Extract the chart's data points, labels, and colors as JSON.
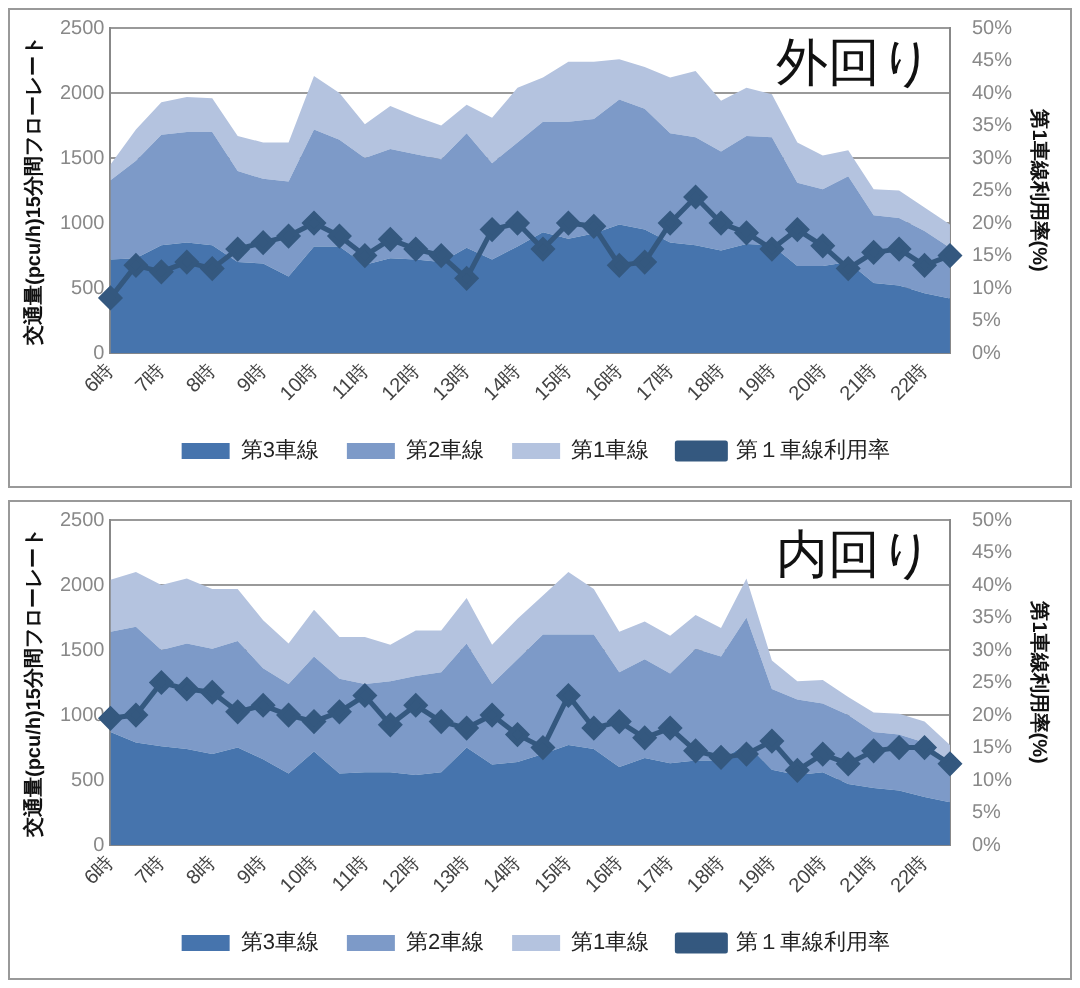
{
  "chart_data": [
    {
      "type": "area",
      "title": "外回り",
      "ylabel": "交通量(pcu/h)15分間フローレート",
      "y2label": "第1車線利用率(%)",
      "stacked": true,
      "grid": "y",
      "legend": "bottom",
      "categories": [
        "6時",
        null,
        "7時",
        null,
        "8時",
        null,
        "9時",
        null,
        "10時",
        null,
        "11時",
        null,
        "12時",
        null,
        "13時",
        null,
        "14時",
        null,
        "15時",
        null,
        "16時",
        null,
        "17時",
        null,
        "18時",
        null,
        "19時",
        null,
        "20時",
        null,
        "21時",
        null,
        "22時",
        null
      ],
      "ylim": [
        0,
        2500
      ],
      "yticks": [
        0,
        500,
        1000,
        1500,
        2000,
        2500
      ],
      "y2lim": [
        0,
        50
      ],
      "y2ticks": [
        {
          "value": 0,
          "label": "0%"
        },
        {
          "value": 5,
          "label": "5%"
        },
        {
          "value": 10,
          "label": "10%"
        },
        {
          "value": 15,
          "label": "15%"
        },
        {
          "value": 20,
          "label": "20%"
        },
        {
          "value": 25,
          "label": "25%"
        },
        {
          "value": 30,
          "label": "30%"
        },
        {
          "value": 35,
          "label": "35%"
        },
        {
          "value": 40,
          "label": "40%"
        },
        {
          "value": 45,
          "label": "45%"
        },
        {
          "value": 50,
          "label": "50%"
        }
      ],
      "series": [
        {
          "name": "第3車線",
          "color": "#4674ad",
          "values": [
            720,
            730,
            830,
            850,
            830,
            700,
            690,
            590,
            820,
            820,
            680,
            730,
            720,
            700,
            810,
            720,
            820,
            930,
            880,
            920,
            990,
            950,
            850,
            830,
            790,
            840,
            830,
            670,
            670,
            700,
            540,
            520,
            460,
            420
          ]
        },
        {
          "name": "第2車線",
          "color": "#7d9ac8",
          "values": [
            610,
            750,
            850,
            850,
            870,
            700,
            650,
            730,
            900,
            820,
            820,
            840,
            810,
            790,
            880,
            740,
            800,
            850,
            900,
            880,
            960,
            930,
            840,
            830,
            760,
            830,
            830,
            640,
            590,
            660,
            520,
            520,
            480,
            390
          ]
        },
        {
          "name": "第1車線",
          "color": "#b4c3df",
          "values": [
            120,
            240,
            250,
            270,
            260,
            270,
            280,
            300,
            410,
            360,
            260,
            330,
            290,
            260,
            220,
            350,
            420,
            340,
            460,
            440,
            310,
            320,
            430,
            510,
            390,
            370,
            330,
            310,
            260,
            200,
            200,
            210,
            180,
            180
          ]
        },
        {
          "name": "第１車線利用率",
          "type": "line",
          "axis": "y2",
          "marker": "diamond",
          "line_style": "solid",
          "color": "#34587f",
          "values": [
            8.5,
            13.5,
            12.5,
            14,
            13,
            16,
            17,
            18,
            20,
            18,
            15,
            17.5,
            16,
            15,
            11.5,
            19,
            20,
            16,
            20,
            19.5,
            13.5,
            14,
            20,
            24,
            20,
            18.5,
            16,
            19,
            16.5,
            13,
            15.5,
            16,
            13.5,
            15
          ]
        }
      ]
    },
    {
      "type": "area",
      "title": "内回り",
      "ylabel": "交通量(pcu/h)15分間フローレート",
      "y2label": "第1車線利用率(%)",
      "stacked": true,
      "grid": "y",
      "legend": "bottom",
      "categories": [
        "6時",
        null,
        "7時",
        null,
        "8時",
        null,
        "9時",
        null,
        "10時",
        null,
        "11時",
        null,
        "12時",
        null,
        "13時",
        null,
        "14時",
        null,
        "15時",
        null,
        "16時",
        null,
        "17時",
        null,
        "18時",
        null,
        "19時",
        null,
        "20時",
        null,
        "21時",
        null,
        "22時",
        null
      ],
      "ylim": [
        0,
        2500
      ],
      "yticks": [
        0,
        500,
        1000,
        1500,
        2000,
        2500
      ],
      "y2lim": [
        0,
        50
      ],
      "y2ticks": [
        {
          "value": 0,
          "label": "0%"
        },
        {
          "value": 5,
          "label": "5%"
        },
        {
          "value": 10,
          "label": "10%"
        },
        {
          "value": 15,
          "label": "15%"
        },
        {
          "value": 20,
          "label": "20%"
        },
        {
          "value": 25,
          "label": "25%"
        },
        {
          "value": 30,
          "label": "30%"
        },
        {
          "value": 35,
          "label": "35%"
        },
        {
          "value": 40,
          "label": "40%"
        },
        {
          "value": 45,
          "label": "45%"
        },
        {
          "value": 50,
          "label": "50%"
        }
      ],
      "series": [
        {
          "name": "第3車線",
          "color": "#4674ad",
          "values": [
            870,
            790,
            760,
            740,
            700,
            750,
            660,
            550,
            720,
            550,
            560,
            560,
            540,
            560,
            750,
            620,
            640,
            700,
            770,
            740,
            600,
            670,
            630,
            650,
            650,
            780,
            580,
            540,
            560,
            470,
            440,
            420,
            370,
            330
          ]
        },
        {
          "name": "第2車線",
          "color": "#7d9ac8",
          "values": [
            770,
            890,
            740,
            810,
            810,
            820,
            700,
            690,
            730,
            730,
            680,
            700,
            760,
            770,
            800,
            620,
            790,
            920,
            850,
            880,
            730,
            760,
            690,
            860,
            800,
            970,
            620,
            580,
            530,
            530,
            430,
            430,
            420,
            310
          ]
        },
        {
          "name": "第1車線",
          "color": "#b4c3df",
          "values": [
            400,
            420,
            500,
            500,
            460,
            400,
            370,
            310,
            360,
            320,
            360,
            280,
            350,
            320,
            350,
            300,
            310,
            300,
            480,
            350,
            310,
            290,
            290,
            260,
            220,
            300,
            220,
            140,
            180,
            140,
            150,
            160,
            160,
            130
          ]
        },
        {
          "name": "第１車線利用率",
          "type": "line",
          "axis": "y2",
          "marker": "diamond",
          "line_style": "solid",
          "color": "#34587f",
          "values": [
            19.5,
            20,
            25,
            24,
            23.5,
            20.5,
            21.5,
            20,
            19,
            20.5,
            23,
            18.5,
            21.5,
            19,
            18,
            20,
            17,
            15,
            23,
            18,
            19,
            16.5,
            18,
            14.5,
            13.5,
            14,
            16,
            11.5,
            14,
            12.5,
            14.5,
            15,
            15,
            12.5
          ]
        }
      ]
    }
  ]
}
